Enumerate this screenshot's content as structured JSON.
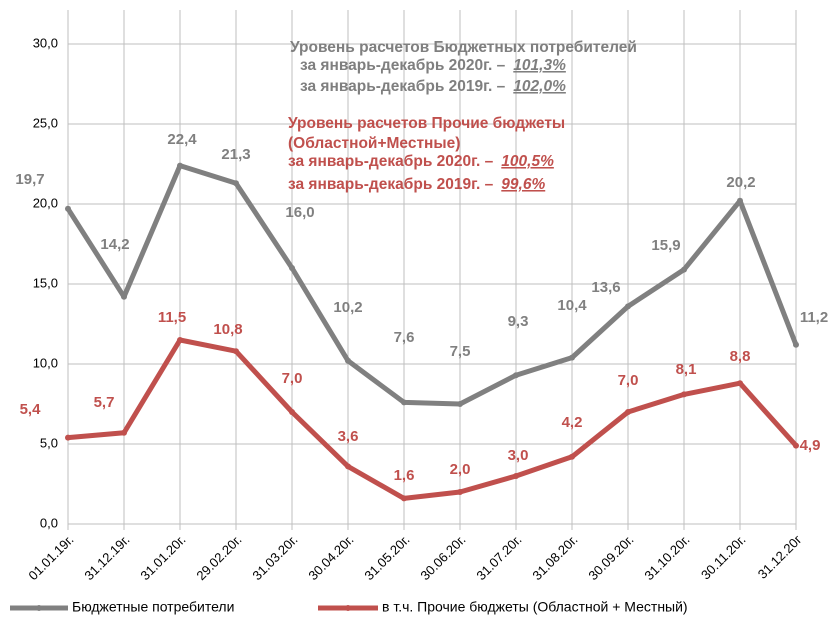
{
  "chart_data": {
    "type": "line",
    "categories": [
      "01.01.19г.",
      "31.12.19г.",
      "31.01.20г.",
      "29.02.20г.",
      "31.03.20г.",
      "30.04.20г.",
      "31.05.20г.",
      "30.06.20г.",
      "31.07.20г.",
      "31.08.20г.",
      "30.09.20г.",
      "31.10.20г.",
      "30.11.20г.",
      "31.12.20г"
    ],
    "series": [
      {
        "name": "Бюджетные потребители",
        "color": "#808080",
        "values": [
          19.7,
          14.2,
          22.4,
          21.3,
          16.0,
          10.2,
          7.6,
          7.5,
          9.3,
          10.4,
          13.6,
          15.9,
          20.2,
          11.2
        ],
        "value_labels": [
          "19,7",
          "14,2",
          "22,4",
          "21,3",
          "16,0",
          "10,2",
          "7,6",
          "7,5",
          "9,3",
          "10,4",
          "13,6",
          "15,9",
          "20,2",
          "11,2"
        ]
      },
      {
        "name": "в т.ч. Прочие бюджеты (Областной + Местный)",
        "color": "#c0504d",
        "values": [
          5.4,
          5.7,
          11.5,
          10.8,
          7.0,
          3.6,
          1.6,
          2.0,
          3.0,
          4.2,
          7.0,
          8.1,
          8.8,
          4.9
        ],
        "value_labels": [
          "5,4",
          "5,7",
          "11,5",
          "10,8",
          "7,0",
          "3,6",
          "1,6",
          "2,0",
          "3,0",
          "4,2",
          "7,0",
          "8,1",
          "8,8",
          "4,9"
        ]
      }
    ],
    "ylim": [
      0,
      30
    ],
    "yticks": [
      {
        "value": 0,
        "label": "0,0"
      },
      {
        "value": 5,
        "label": "5,0"
      },
      {
        "value": 10,
        "label": "10,0"
      },
      {
        "value": 15,
        "label": "15,0"
      },
      {
        "value": 20,
        "label": "20,0"
      },
      {
        "value": 25,
        "label": "25,0"
      },
      {
        "value": 30,
        "label": "30,0"
      }
    ],
    "grid": true,
    "legend": "bottom",
    "annotations": [
      {
        "color": "#7f7f7f",
        "title": [
          "Уровень расчетов Бюджетных потребителей"
        ],
        "rows": [
          {
            "text": "за январь-декабрь 2020г. –",
            "value": "101,3%"
          },
          {
            "text": "за январь-декабрь 2019г. –",
            "value": "102,0%"
          }
        ]
      },
      {
        "color": "#c0504d",
        "title": [
          "Уровень расчетов Прочие бюджеты",
          "(Областной+Местные)"
        ],
        "rows": [
          {
            "text": "за январь-декабрь 2020г. –",
            "value": "100,5%"
          },
          {
            "text": "за январь-декабрь 2019г. –",
            "value": "99,6%"
          }
        ]
      }
    ]
  }
}
